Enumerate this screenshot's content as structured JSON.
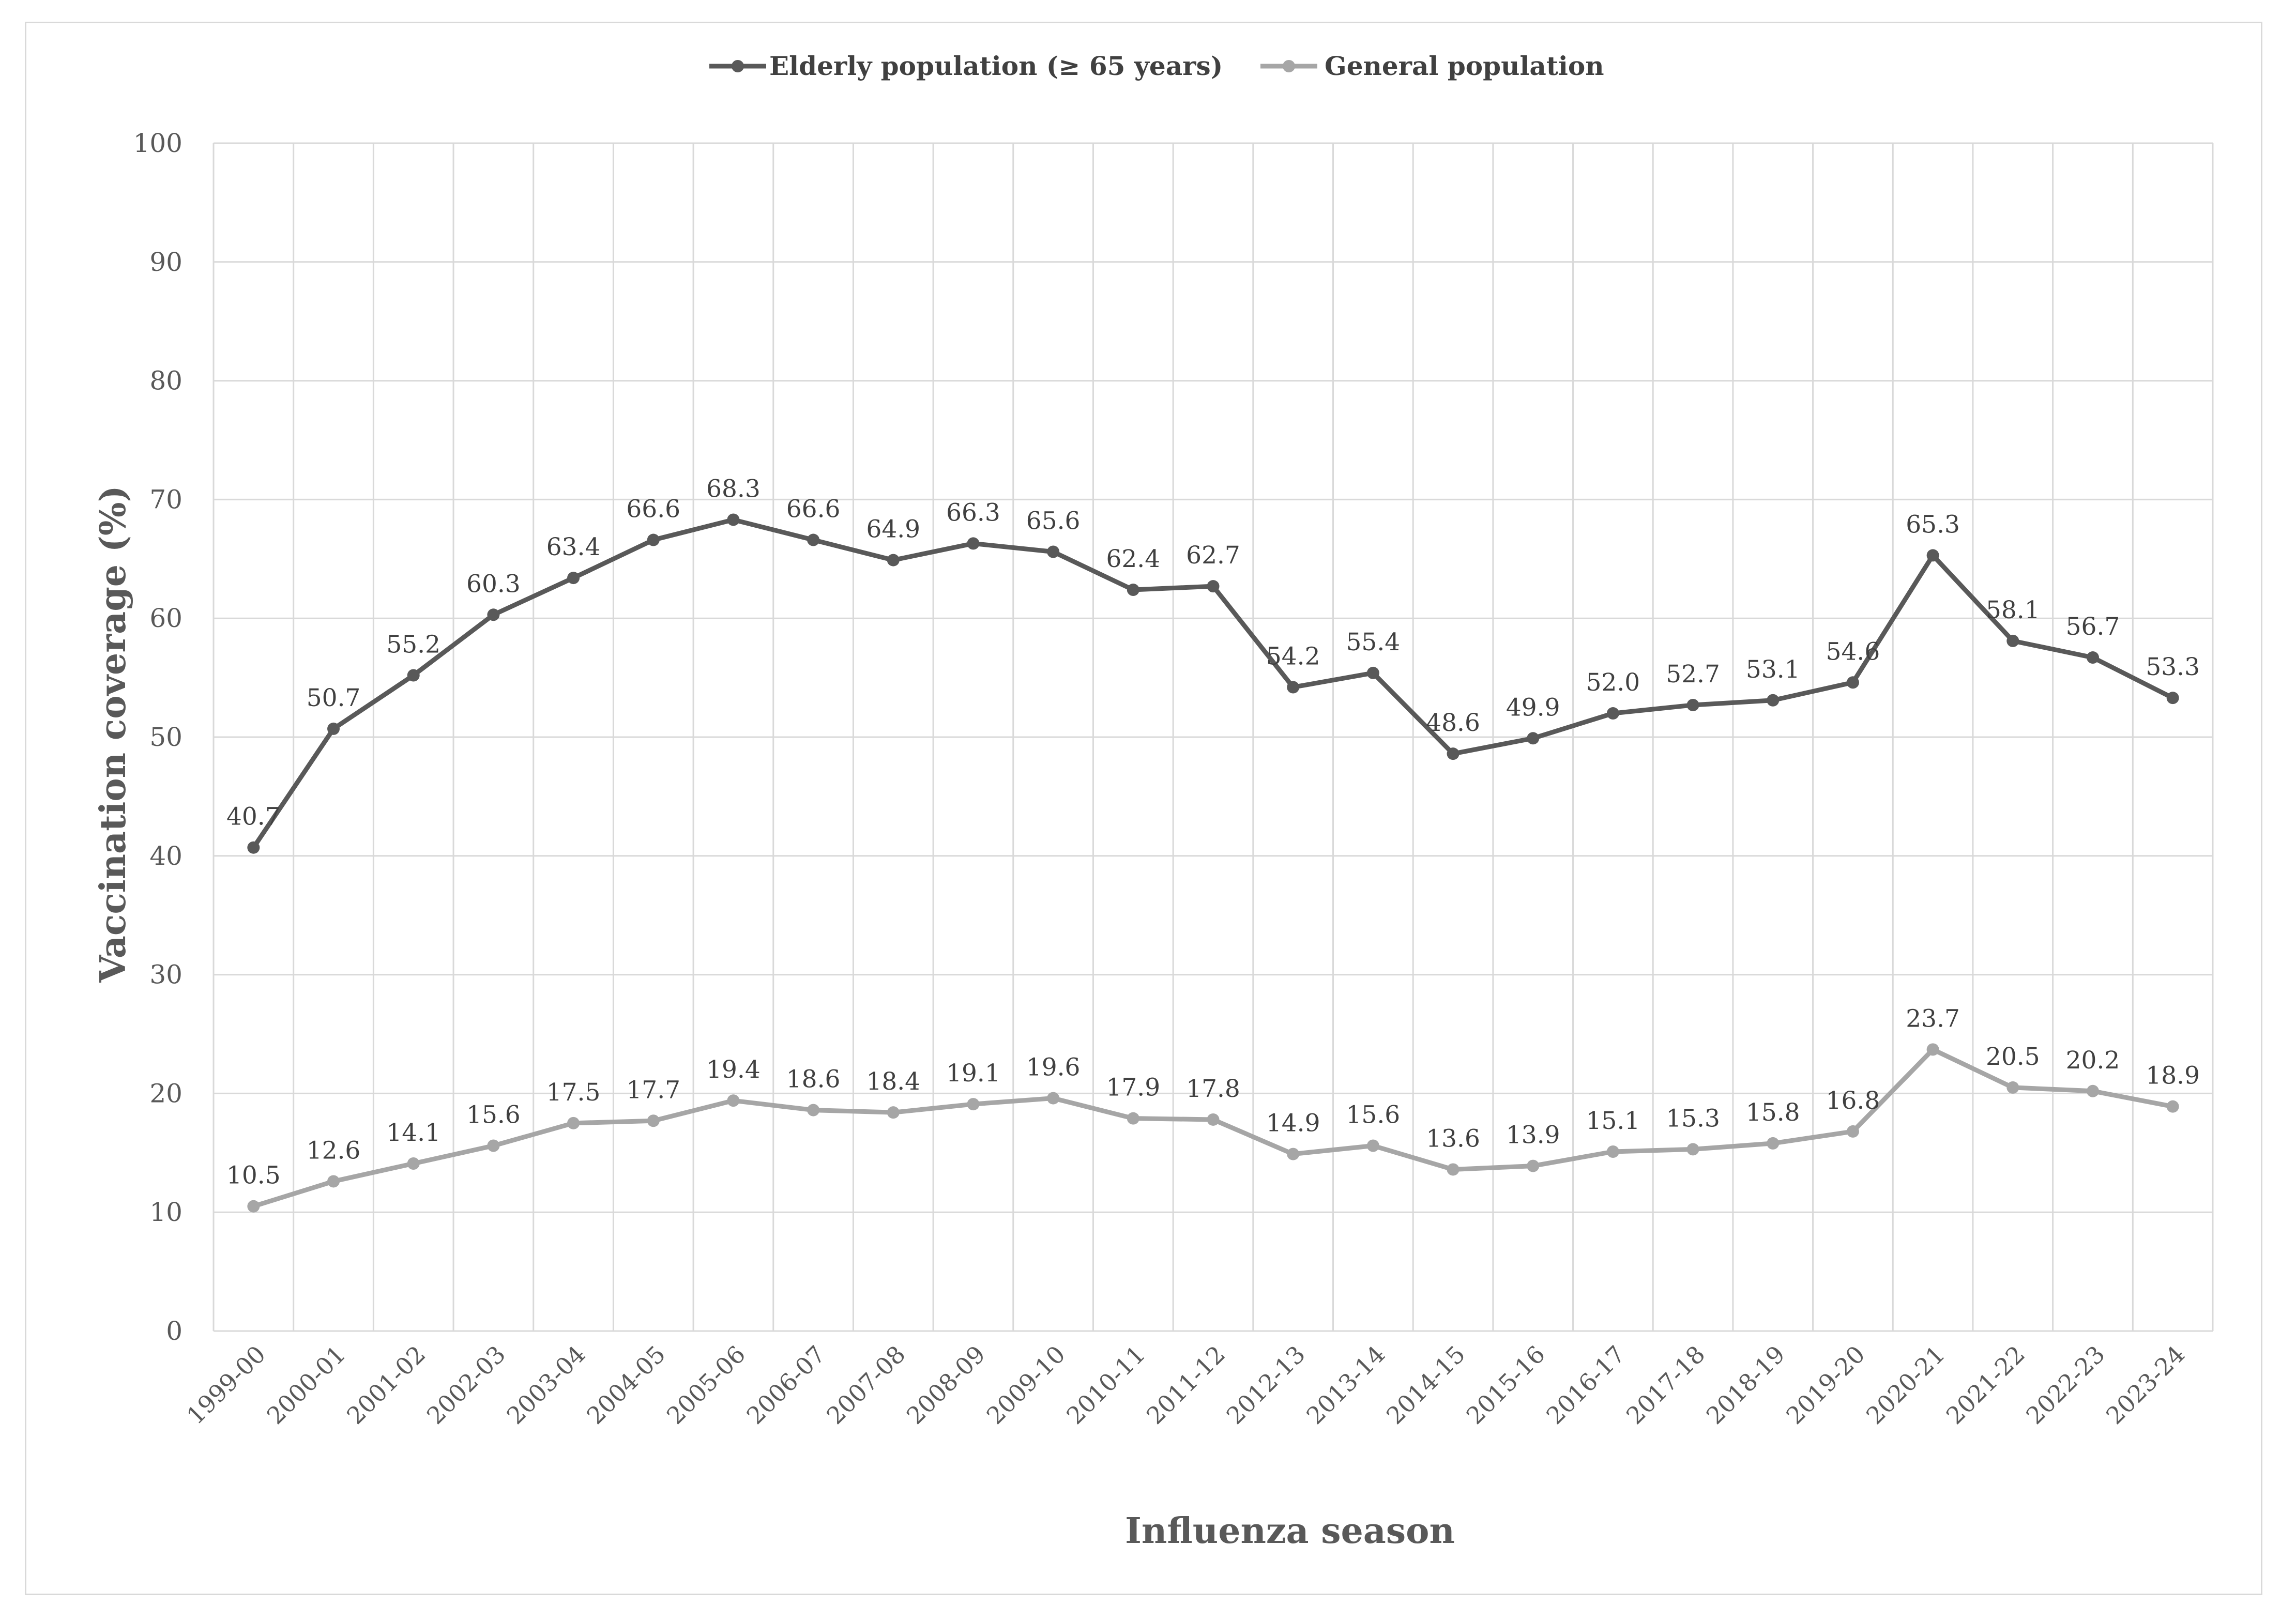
{
  "chart_data": {
    "type": "line",
    "title": "",
    "xlabel": "Influenza season",
    "ylabel": "Vaccination coverage (%)",
    "ylim": [
      0,
      100
    ],
    "yticks": [
      "0",
      "10",
      "20",
      "30",
      "40",
      "50",
      "60",
      "70",
      "80",
      "90",
      "100"
    ],
    "grid": true,
    "legend_position": "top-center",
    "categories": [
      "1999-00",
      "2000-01",
      "2001-02",
      "2002-03",
      "2003-04",
      "2004-05",
      "2005-06",
      "2006-07",
      "2007-08",
      "2008-09",
      "2009-10",
      "2010-11",
      "2011-12",
      "2012-13",
      "2013-14",
      "2014-15",
      "2015-16",
      "2016-17",
      "2017-18",
      "2018-19",
      "2019-20",
      "2020-21",
      "2021-22",
      "2022-23",
      "2023-24"
    ],
    "series": [
      {
        "name": "Elderly population (≥ 65 years)",
        "color": "#595959",
        "values": [
          40.7,
          50.7,
          55.2,
          60.3,
          63.4,
          66.6,
          68.3,
          66.6,
          64.9,
          66.3,
          65.6,
          62.4,
          62.7,
          54.2,
          55.4,
          48.6,
          49.9,
          52.0,
          52.7,
          53.1,
          54.6,
          65.3,
          58.1,
          56.7,
          53.3
        ],
        "labels": [
          "40.7",
          "50.7",
          "55.2",
          "60.3",
          "63.4",
          "66.6",
          "68.3",
          "66.6",
          "64.9",
          "66.3",
          "65.6",
          "62.4",
          "62.7",
          "54.2",
          "55.4",
          "48.6",
          "49.9",
          "52.0",
          "52.7",
          "53.1",
          "54.6",
          "65.3",
          "58.1",
          "56.7",
          "53.3"
        ]
      },
      {
        "name": "General population",
        "color": "#a6a6a6",
        "values": [
          10.5,
          12.6,
          14.1,
          15.6,
          17.5,
          17.7,
          19.4,
          18.6,
          18.4,
          19.1,
          19.6,
          17.9,
          17.8,
          14.9,
          15.6,
          13.6,
          13.9,
          15.1,
          15.3,
          15.8,
          16.8,
          23.7,
          20.5,
          20.2,
          18.9
        ],
        "labels": [
          "10.5",
          "12.6",
          "14.1",
          "15.6",
          "17.5",
          "17.7",
          "19.4",
          "18.6",
          "18.4",
          "19.1",
          "19.6",
          "17.9",
          "17.8",
          "14.9",
          "15.6",
          "13.6",
          "13.9",
          "15.1",
          "15.3",
          "15.8",
          "16.8",
          "23.7",
          "20.5",
          "20.2",
          "18.9"
        ]
      }
    ]
  }
}
